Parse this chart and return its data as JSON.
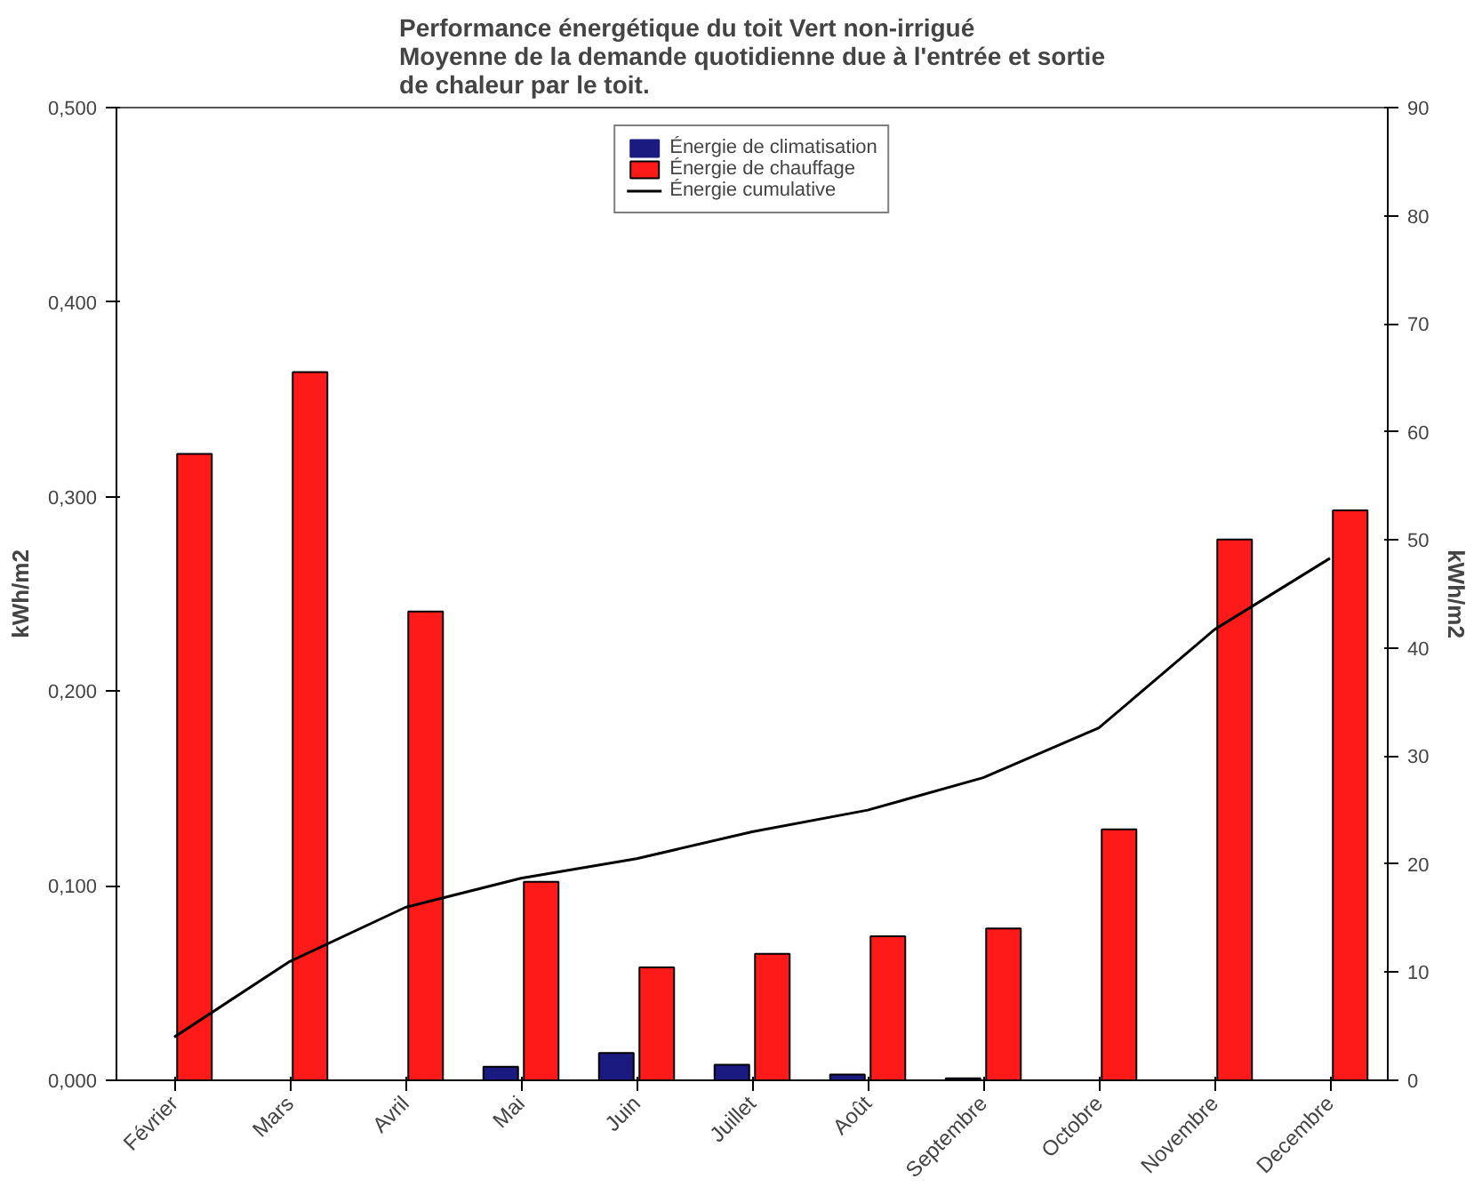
{
  "chart_data": {
    "type": "bar",
    "title": "Performance énergétique du toit Vert non-irrigué\nMoyenne de la demande quotidienne due à l'entrée et sortie\nde chaleur par le toit.",
    "ylabel": "kWh/m2",
    "y2label": "kWh/m2",
    "categories": [
      "Février",
      "Mars",
      "Avril",
      "Mai",
      "Juin",
      "Juillet",
      "Août",
      "Septembre",
      "Octobre",
      "Novembre",
      "Decembre"
    ],
    "series": [
      {
        "name": "Énergie de climatisation",
        "color": "#1a1a80",
        "values": [
          0,
          0,
          0,
          0.007,
          0.014,
          0.008,
          0.003,
          0.001,
          0,
          0,
          0
        ]
      },
      {
        "name": "Énergie de chauffage",
        "color": "#ff1a1a",
        "values": [
          0.322,
          0.364,
          0.241,
          0.102,
          0.058,
          0.065,
          0.074,
          0.078,
          0.129,
          0.278,
          0.293
        ]
      },
      {
        "name": "Énergie cumulative",
        "type": "line",
        "axis": "y2",
        "color": "#000000",
        "values": [
          4,
          11,
          16,
          18.7,
          20.5,
          23,
          25,
          28,
          32.6,
          41.7,
          48.3
        ]
      }
    ],
    "ylim": [
      0,
      0.5
    ],
    "yticks": [
      {
        "value": 0,
        "label": "0,000"
      },
      {
        "value": 0.1,
        "label": "0,100"
      },
      {
        "value": 0.2,
        "label": "0,200"
      },
      {
        "value": 0.3,
        "label": "0,300"
      },
      {
        "value": 0.4,
        "label": "0,400"
      },
      {
        "value": 0.5,
        "label": "0,500"
      }
    ],
    "y2lim": [
      0,
      90
    ],
    "y2ticks": [
      0,
      10,
      20,
      30,
      40,
      50,
      60,
      70,
      80,
      90
    ],
    "grid": false,
    "legend": "top",
    "line_style": "solid",
    "marker": "none"
  }
}
